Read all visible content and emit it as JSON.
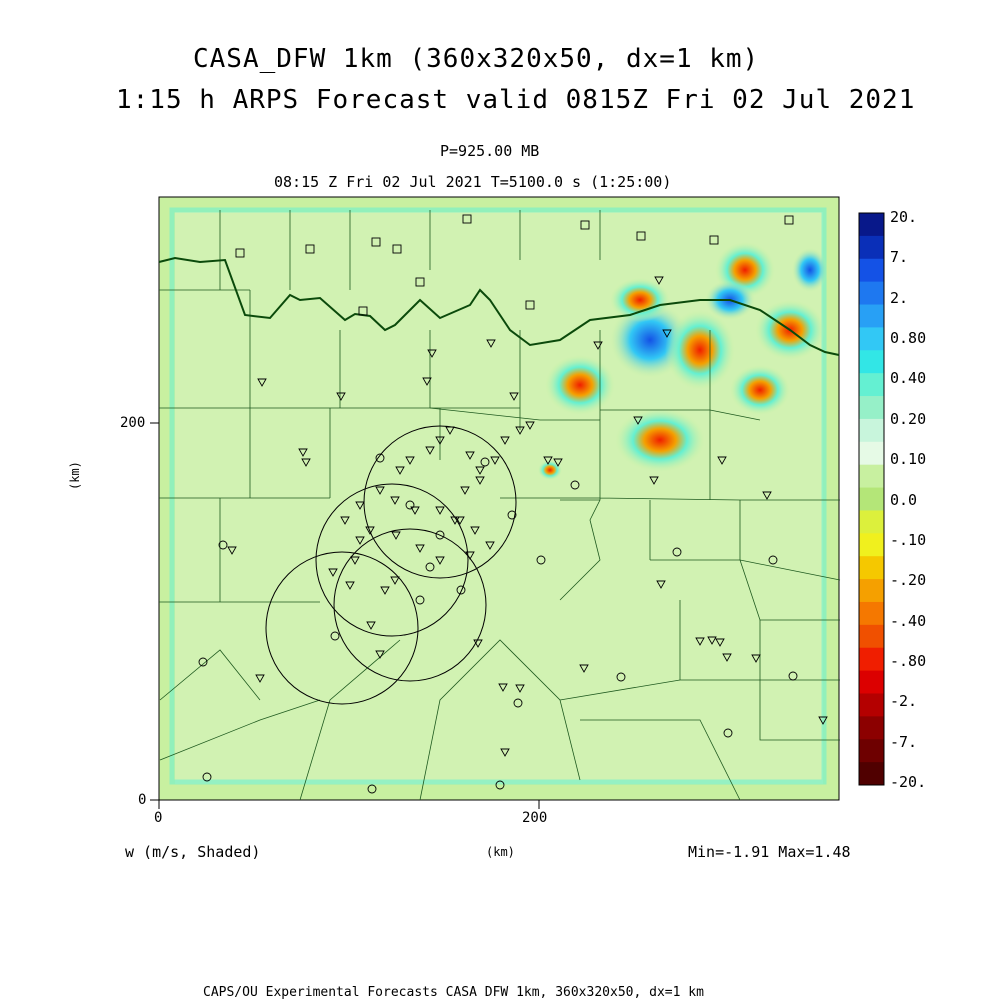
{
  "header": {
    "title_line1": "CASA_DFW 1km (360x320x50, dx=1 km)",
    "title_line2": "1:15 h ARPS Forecast valid 0815Z Fri 02 Jul 2021",
    "pressure": "P=925.00 MB",
    "time_line": "08:15 Z Fri 02 Jul 2021    T=5100.0 s (1:25:00)"
  },
  "axes": {
    "y_ticks": [
      "200",
      "0"
    ],
    "x_ticks": [
      "0",
      "200"
    ],
    "y_label": "(km)",
    "x_label": "(km)"
  },
  "footer": {
    "variable": "w (m/s, Shaded)",
    "minmax": "Min=-1.91 Max=1.48",
    "credit": "CAPS/OU Experimental Forecasts  CASA DFW 1km, 360x320x50, dx=1 km"
  },
  "colorbar": {
    "labels": [
      "20.",
      "7.",
      "2.",
      "0.80",
      "0.40",
      "0.20",
      "0.10",
      "0.0",
      "-.10",
      "-.20",
      "-.40",
      "-.80",
      "-2.",
      "-7.",
      "-20."
    ],
    "colors": [
      "#08188a",
      "#0a2fb8",
      "#1452e6",
      "#1e78f0",
      "#28a0f5",
      "#32c8f5",
      "#32e6e6",
      "#64f0d2",
      "#96f0c8",
      "#c8f5dc",
      "#e6fae6",
      "#c8f0a0",
      "#b4e678",
      "#dcf03c",
      "#f0f01e",
      "#f5c800",
      "#f5a000",
      "#f57800",
      "#f05000",
      "#f01e00",
      "#dc0000",
      "#b40000",
      "#8c0000",
      "#6e0000",
      "#500000"
    ]
  }
}
